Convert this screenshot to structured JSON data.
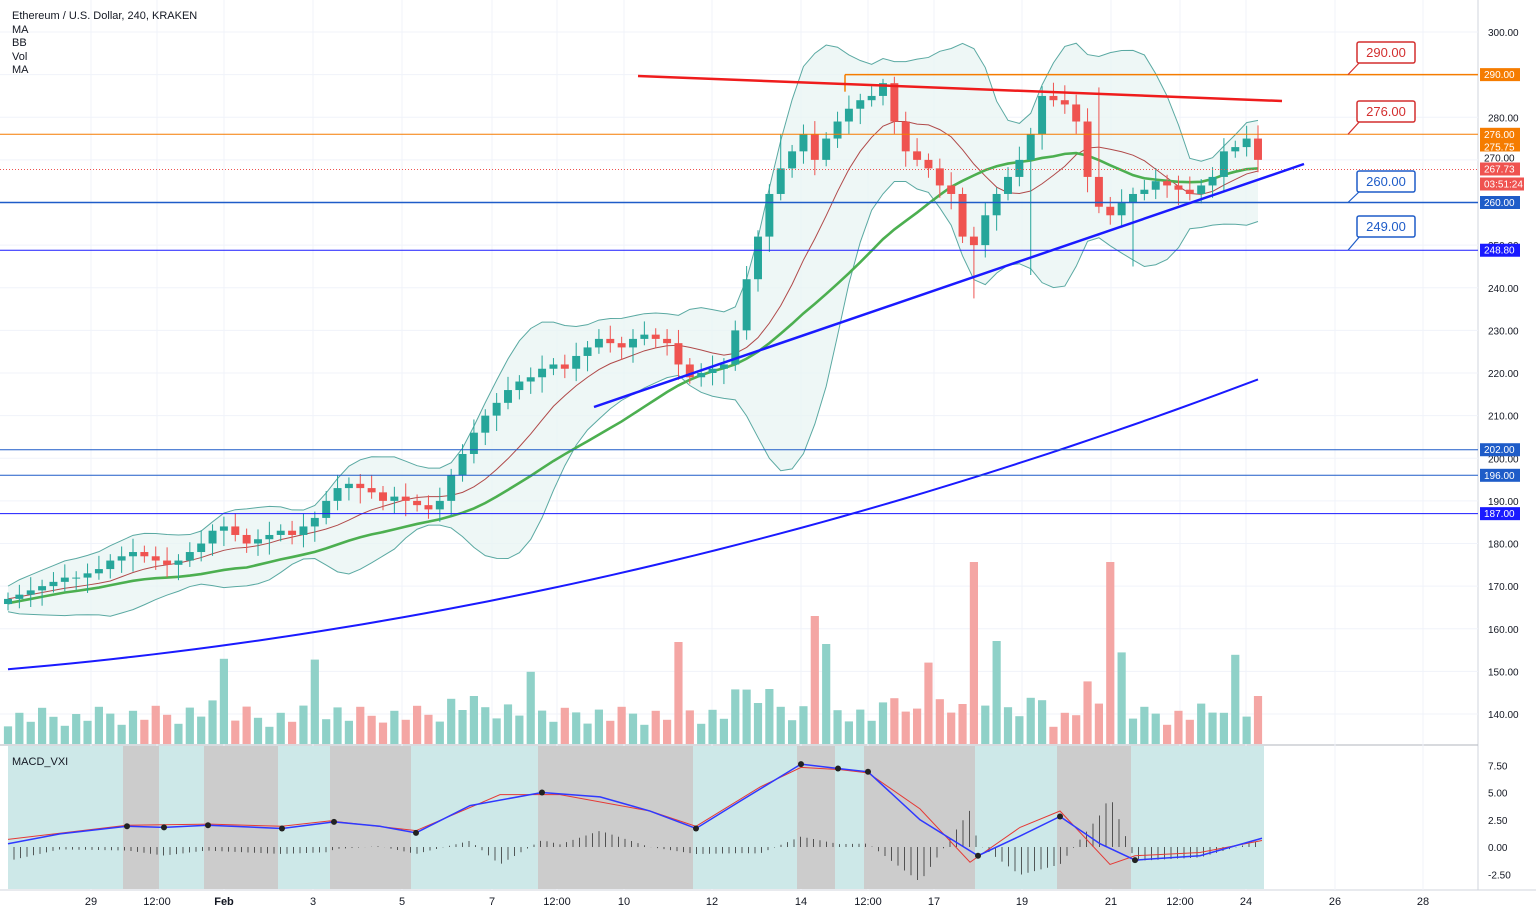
{
  "header": {
    "title": "Ethereum / U.S. Dollar, 240, KRAKEN",
    "indicators": [
      "MA",
      "BB",
      "Vol",
      "MA"
    ]
  },
  "macd": {
    "label": "MACD_VXI"
  },
  "price_axis": {
    "ticks": [
      "300.00",
      "290.00",
      "280.00",
      "270.00",
      "260.00",
      "250.00",
      "240.00",
      "230.00",
      "220.00",
      "210.00",
      "200.00",
      "190.00",
      "180.00",
      "170.00",
      "160.00",
      "150.00",
      "140.00"
    ]
  },
  "macd_axis": {
    "ticks": [
      "7.50",
      "5.00",
      "2.50",
      "0.00",
      "-2.50"
    ]
  },
  "time_axis": {
    "ticks": [
      "29",
      "12:00",
      "Feb",
      "3",
      "5",
      "7",
      "12:00",
      "10",
      "12",
      "14",
      "12:00",
      "17",
      "19",
      "21",
      "12:00",
      "24",
      "26",
      "28"
    ]
  },
  "price_badges": [
    {
      "text": "290.00",
      "color": "#f57c00"
    },
    {
      "text": "276.00",
      "color": "#f57c00"
    },
    {
      "text": "275.75",
      "color": "#f57c00"
    },
    {
      "text": "270.00",
      "color": "#ffffff"
    },
    {
      "text": "267.73",
      "color": "#ef5350"
    },
    {
      "text": "03:51:24",
      "color": "#ef5350"
    },
    {
      "text": "260.00",
      "color": "#1e5cc8"
    },
    {
      "text": "248.80",
      "color": "#1a1aff"
    },
    {
      "text": "202.00",
      "color": "#1e5cc8"
    },
    {
      "text": "196.00",
      "color": "#1e5cc8"
    },
    {
      "text": "187.00",
      "color": "#1a1aff"
    }
  ],
  "callouts": [
    {
      "text": "290.00",
      "color": "#d32f2f"
    },
    {
      "text": "276.00",
      "color": "#d32f2f"
    },
    {
      "text": "260.00",
      "color": "#1e5cc8"
    },
    {
      "text": "249.00",
      "color": "#1e5cc8"
    }
  ],
  "chart_data": {
    "type": "candlestick",
    "title": "Ethereum / U.S. Dollar, 240, KRAKEN",
    "ylim": [
      130,
      305
    ],
    "horizontal_levels": [
      290,
      276,
      260,
      248.8,
      202,
      196,
      187
    ],
    "last_price": 267.73,
    "colors": {
      "up": "#26a69a",
      "down": "#ef5350",
      "bb_fill": "#e8f4f3",
      "ma_slow": "#4caf50",
      "ma_long": "#1a1aff"
    },
    "ohlc_close": [
      167,
      168,
      169,
      170,
      171,
      172,
      172,
      173,
      174,
      176,
      177,
      178,
      177,
      176,
      175,
      176,
      178,
      180,
      183,
      184,
      182,
      180,
      181,
      182,
      183,
      182,
      184,
      186,
      190,
      193,
      194,
      193,
      192,
      190,
      191,
      190,
      189,
      188,
      190,
      196,
      201,
      206,
      210,
      213,
      216,
      218,
      219,
      221,
      222,
      221,
      224,
      226,
      228,
      227,
      226,
      228,
      229,
      228,
      227,
      222,
      219,
      220,
      221,
      222,
      230,
      242,
      252,
      262,
      268,
      272,
      276,
      270,
      275,
      279,
      282,
      284,
      285,
      288,
      279,
      272,
      270,
      268,
      264,
      262,
      252,
      250,
      257,
      262,
      266,
      270,
      276,
      285,
      284,
      283,
      279,
      266,
      259,
      257,
      260,
      262,
      263,
      265,
      264,
      263,
      262,
      264,
      266,
      272,
      273,
      275,
      270
    ]
  }
}
